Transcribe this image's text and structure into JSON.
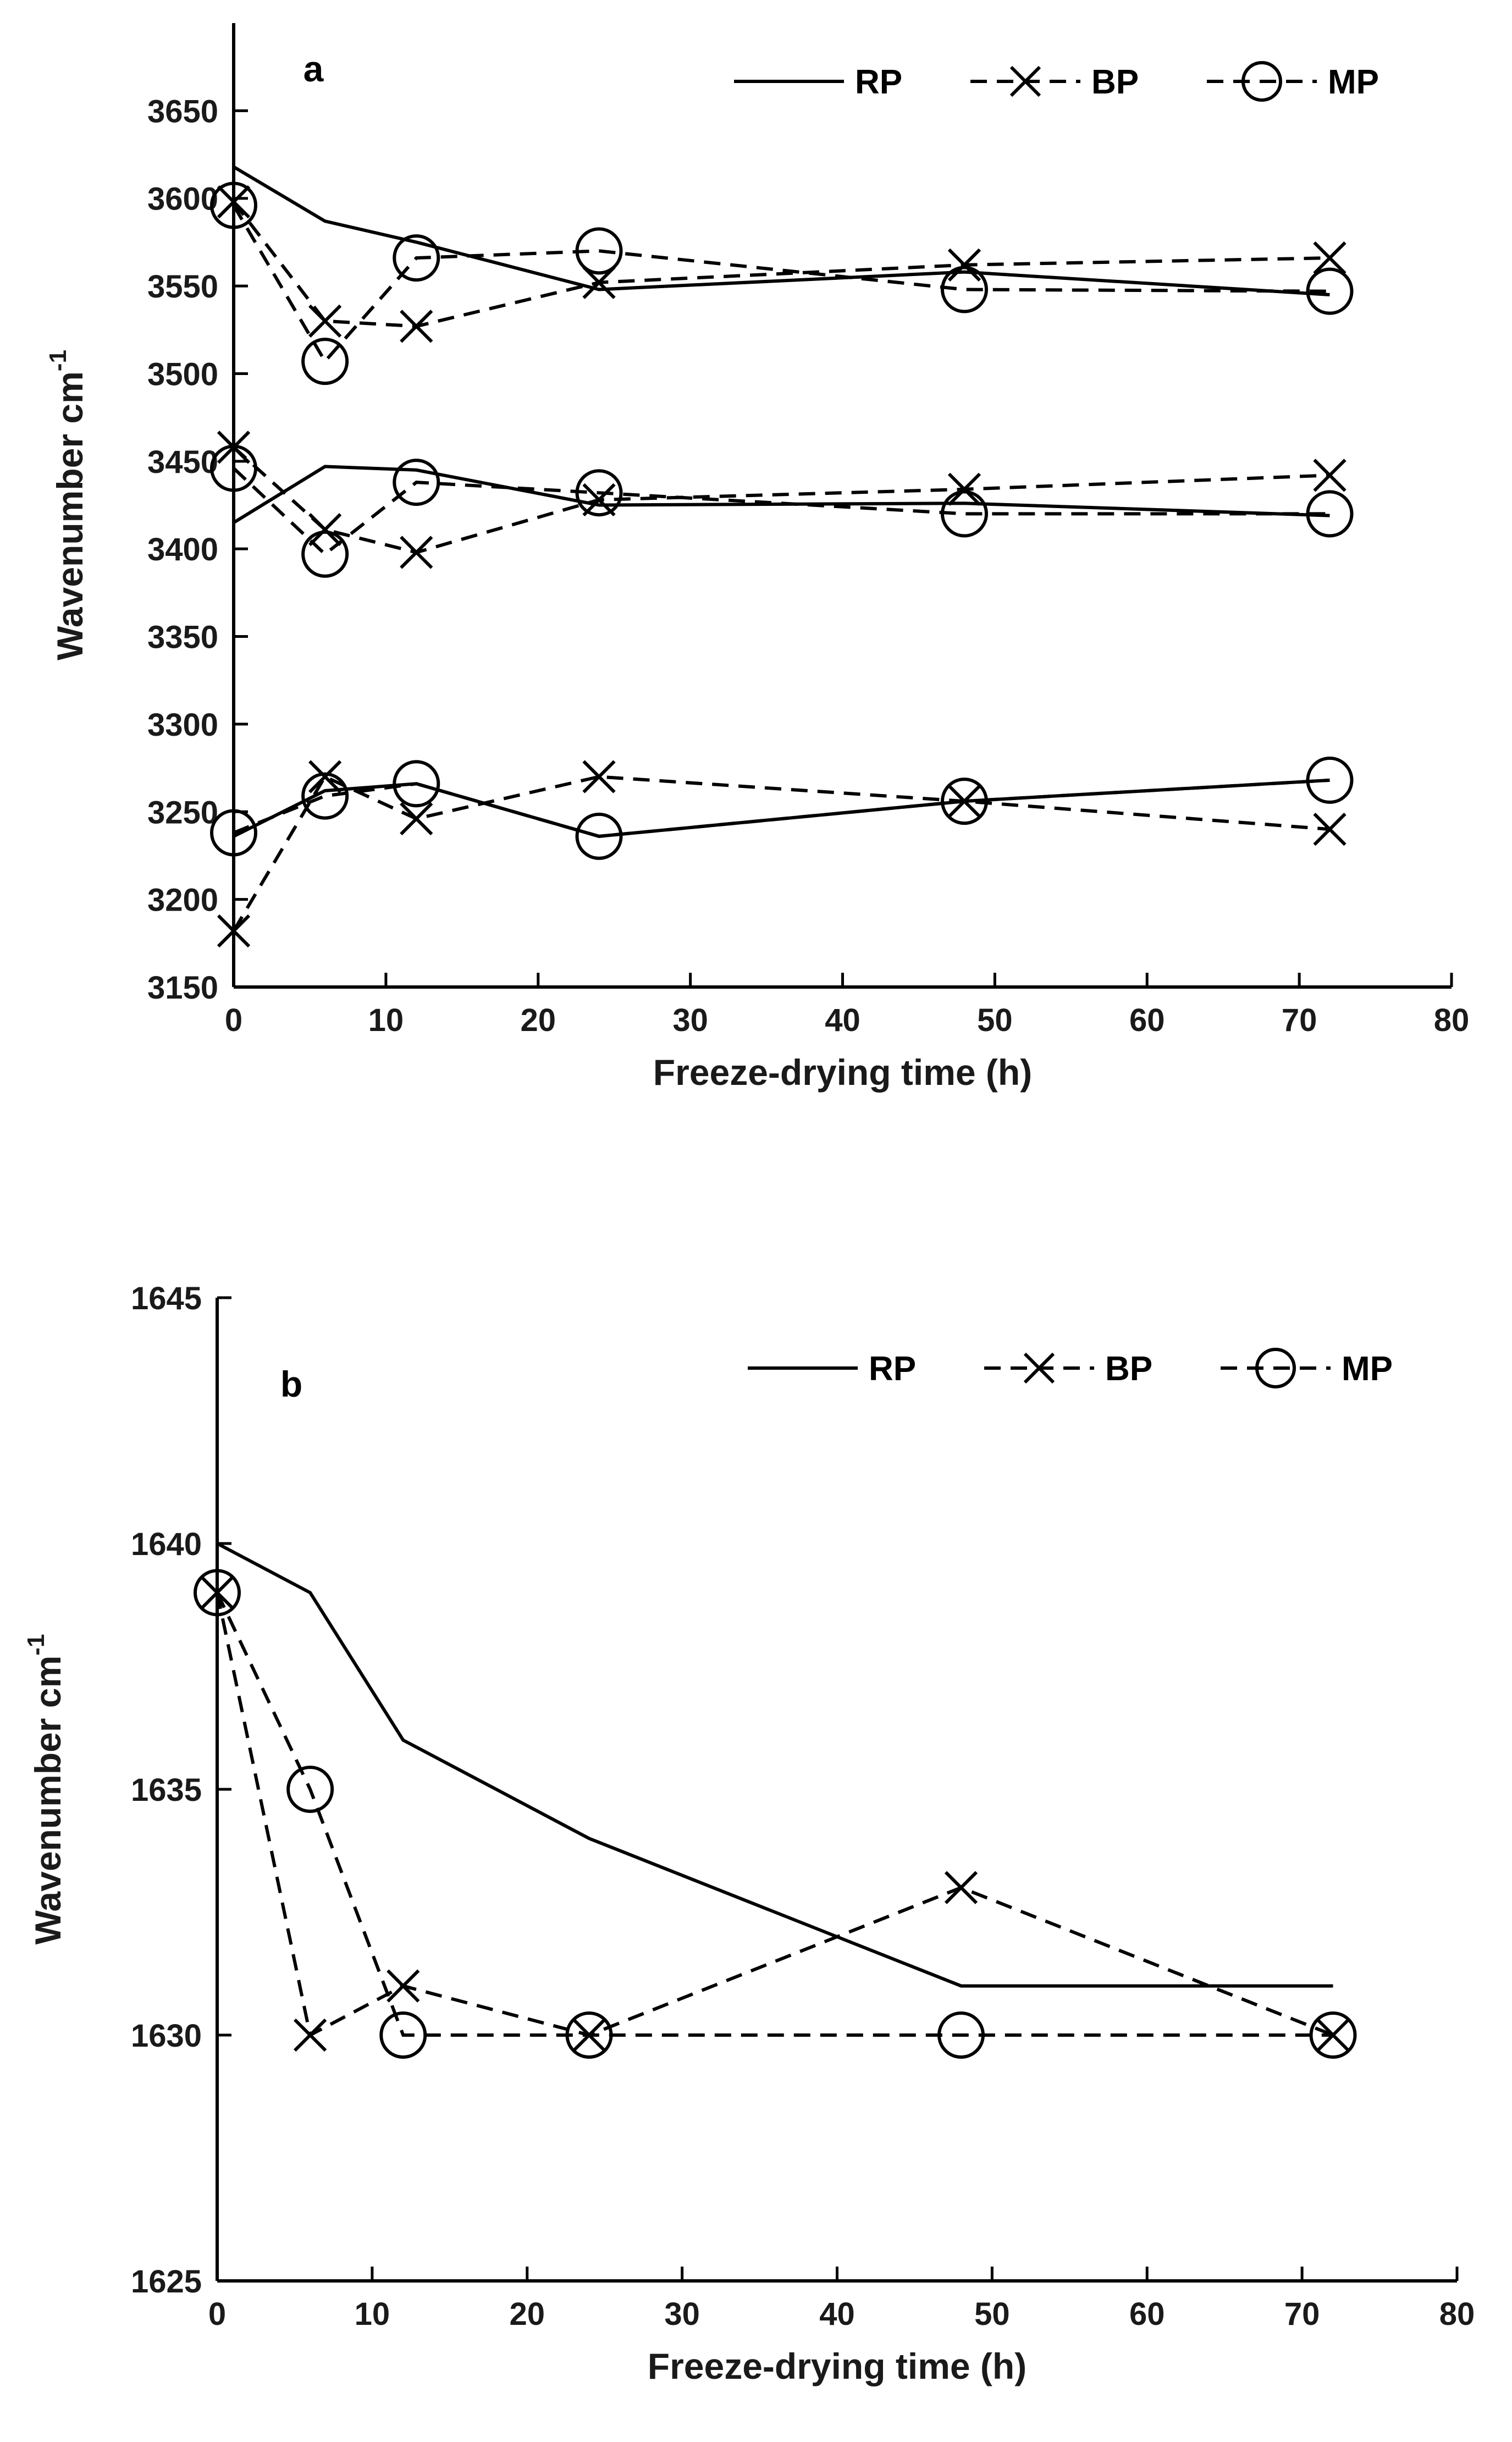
{
  "chart_data": [
    {
      "type": "line",
      "panel_label": "a",
      "xlabel": "Freeze-drying time (h)",
      "ylabel": "Wavenumber cm",
      "ylabel_superscript": "-1",
      "xlim": [
        0,
        80
      ],
      "ylim": [
        3150,
        3700
      ],
      "xticks": [
        0,
        10,
        20,
        30,
        40,
        50,
        60,
        70,
        80
      ],
      "yticks": [
        3150,
        3200,
        3250,
        3300,
        3350,
        3400,
        3450,
        3500,
        3550,
        3600,
        3650
      ],
      "legend_position": "top-right",
      "legend": [
        {
          "name": "RP",
          "style": "solid",
          "marker": "none"
        },
        {
          "name": "BP",
          "style": "dashed",
          "marker": "x"
        },
        {
          "name": "MP",
          "style": "dashed",
          "marker": "circle"
        }
      ],
      "x": [
        0,
        6,
        12,
        24,
        48,
        72
      ],
      "series": [
        {
          "name": "RP",
          "group": "band-1",
          "values": [
            3618,
            3587,
            3575,
            3548,
            3558,
            3545
          ]
        },
        {
          "name": "BP",
          "group": "band-1",
          "values": [
            3598,
            3530,
            3527,
            3552,
            3562,
            3566
          ]
        },
        {
          "name": "MP",
          "group": "band-1",
          "values": [
            3596,
            3507,
            3566,
            3570,
            3548,
            3547
          ]
        },
        {
          "name": "RP",
          "group": "band-2",
          "values": [
            3415,
            3447,
            3445,
            3425,
            3426,
            3419
          ]
        },
        {
          "name": "BP",
          "group": "band-2",
          "values": [
            3458,
            3411,
            3398,
            3428,
            3434,
            3442
          ]
        },
        {
          "name": "MP",
          "group": "band-2",
          "values": [
            3446,
            3397,
            3438,
            3432,
            3420,
            3420
          ]
        },
        {
          "name": "RP",
          "group": "band-3",
          "values": [
            3236,
            3262,
            3266,
            3236,
            3256,
            3268
          ]
        },
        {
          "name": "BP",
          "group": "band-3",
          "values": [
            3182,
            3270,
            3246,
            3270,
            3256,
            3240
          ]
        },
        {
          "name": "MP",
          "group": "band-3",
          "values": [
            3238,
            3259,
            3266,
            3236,
            3256,
            3268
          ]
        }
      ]
    },
    {
      "type": "line",
      "panel_label": "b",
      "xlabel": "Freeze-drying time (h)",
      "ylabel": "Wavenumber cm",
      "ylabel_superscript": "-1",
      "xlim": [
        0,
        80
      ],
      "ylim": [
        1625,
        1645
      ],
      "xticks": [
        0,
        10,
        20,
        30,
        40,
        50,
        60,
        70,
        80
      ],
      "yticks": [
        1625,
        1630,
        1635,
        1640,
        1645
      ],
      "legend_position": "top-right",
      "legend": [
        {
          "name": "RP",
          "style": "solid",
          "marker": "none"
        },
        {
          "name": "BP",
          "style": "dashed",
          "marker": "x"
        },
        {
          "name": "MP",
          "style": "dashed",
          "marker": "circle"
        }
      ],
      "x": [
        0,
        6,
        12,
        24,
        48,
        72
      ],
      "series": [
        {
          "name": "RP",
          "group": "band-1",
          "values": [
            1640,
            1639,
            1636,
            1634,
            1631,
            1631
          ]
        },
        {
          "name": "BP",
          "group": "band-1",
          "values": [
            1639,
            1630,
            1631,
            1630,
            1633,
            1630
          ]
        },
        {
          "name": "MP",
          "group": "band-1",
          "values": [
            1639,
            1635,
            1630,
            1630,
            1630,
            1630
          ]
        }
      ]
    }
  ]
}
